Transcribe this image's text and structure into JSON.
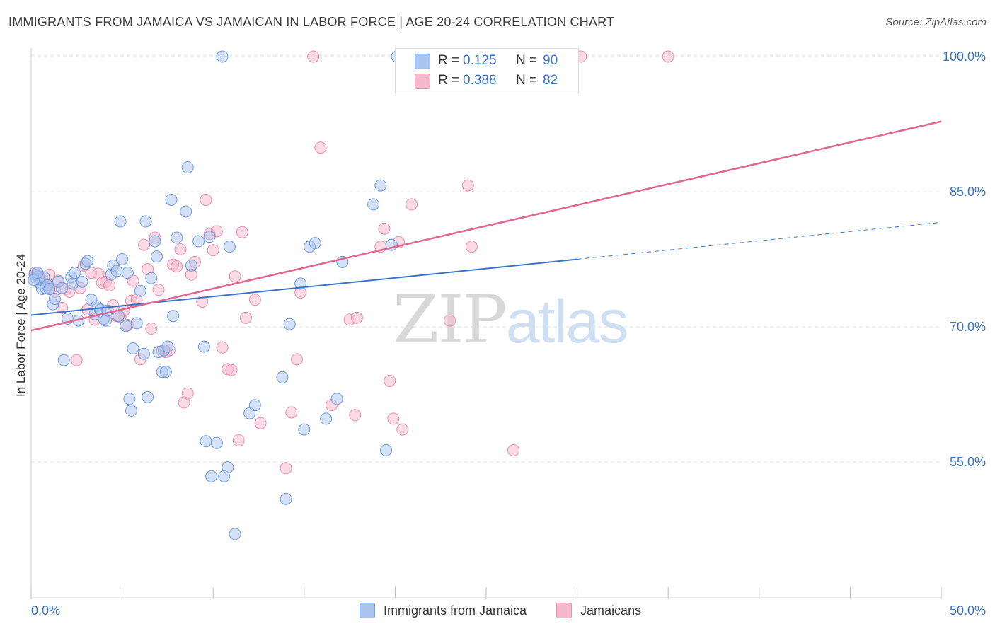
{
  "title": "IMMIGRANTS FROM JAMAICA VS JAMAICAN IN LABOR FORCE | AGE 20-24 CORRELATION CHART",
  "source": "Source: ZipAtlas.com",
  "watermark": {
    "part1": "ZIP",
    "part2": "atlas"
  },
  "legend_top": [
    {
      "r_label": "R =",
      "r_value": "0.125",
      "n_label": "N =",
      "n_value": "90"
    },
    {
      "r_label": "R =",
      "r_value": "0.388",
      "n_label": "N =",
      "n_value": "82"
    }
  ],
  "colors": {
    "blue_fill": "#a9c4ee",
    "blue_stroke": "#6f9be0",
    "blue_line": "#3a74c8",
    "pink_fill": "#f6b8cc",
    "pink_stroke": "#ea8fae",
    "pink_line": "#e06690",
    "tick_text": "#3a74c8",
    "grid": "#e0e0e0"
  },
  "chart_data": {
    "type": "scatter",
    "title": "IMMIGRANTS FROM JAMAICA VS JAMAICAN IN LABOR FORCE | AGE 20-24 CORRELATION CHART",
    "xlabel": "",
    "ylabel": "In Labor Force | Age 20-24",
    "xlim": [
      0,
      50
    ],
    "ylim": [
      40,
      101.5
    ],
    "x_tick_labels": [
      "0.0%",
      "50.0%"
    ],
    "y_ticks": [
      55,
      70,
      85,
      100
    ],
    "y_tick_labels": [
      "55.0%",
      "70.0%",
      "85.0%",
      "100.0%"
    ],
    "grid": "horizontal dashed",
    "legend": "top-center and bottom",
    "series": [
      {
        "name": "Immigrants from Jamaica",
        "r": 0.125,
        "n": 90,
        "trend": {
          "x0": 0,
          "y0": 71.3,
          "x1": 30,
          "y1": 77.5,
          "x_dashed_end": 50,
          "y_dashed_end": 81.6
        },
        "points": [
          [
            0.2,
            75.8
          ],
          [
            0.3,
            75.3
          ],
          [
            0.4,
            75.6
          ],
          [
            0.5,
            74.8
          ],
          [
            0.6,
            74.2
          ],
          [
            0.7,
            75.5
          ],
          [
            0.8,
            74.3
          ],
          [
            0.9,
            74.6
          ],
          [
            1.0,
            74.2
          ],
          [
            1.2,
            72.5
          ],
          [
            1.3,
            73.1
          ],
          [
            1.5,
            75.0
          ],
          [
            1.7,
            74.3
          ],
          [
            1.8,
            66.3
          ],
          [
            2.0,
            70.9
          ],
          [
            2.2,
            75.5
          ],
          [
            2.3,
            74.8
          ],
          [
            2.4,
            76.0
          ],
          [
            2.6,
            70.7
          ],
          [
            2.8,
            75.0
          ],
          [
            3.0,
            77.0
          ],
          [
            3.1,
            77.3
          ],
          [
            3.3,
            73.0
          ],
          [
            3.5,
            71.4
          ],
          [
            3.6,
            72.3
          ],
          [
            3.8,
            71.9
          ],
          [
            4.0,
            70.9
          ],
          [
            4.1,
            70.7
          ],
          [
            4.2,
            71.8
          ],
          [
            4.4,
            75.8
          ],
          [
            4.5,
            76.8
          ],
          [
            4.7,
            76.2
          ],
          [
            4.8,
            71.2
          ],
          [
            4.9,
            81.7
          ],
          [
            5.0,
            77.5
          ],
          [
            5.2,
            70.1
          ],
          [
            5.3,
            76.0
          ],
          [
            5.4,
            62.0
          ],
          [
            5.5,
            60.7
          ],
          [
            5.6,
            67.6
          ],
          [
            5.8,
            70.4
          ],
          [
            6.0,
            74.0
          ],
          [
            6.2,
            67.0
          ],
          [
            6.3,
            81.7
          ],
          [
            6.4,
            62.2
          ],
          [
            6.6,
            75.4
          ],
          [
            6.8,
            79.5
          ],
          [
            6.9,
            77.8
          ],
          [
            7.0,
            67.2
          ],
          [
            7.2,
            65.0
          ],
          [
            7.3,
            67.4
          ],
          [
            7.4,
            65.0
          ],
          [
            7.5,
            67.8
          ],
          [
            7.7,
            84.1
          ],
          [
            7.8,
            71.2
          ],
          [
            8.0,
            79.9
          ],
          [
            8.5,
            82.8
          ],
          [
            8.6,
            87.7
          ],
          [
            8.8,
            76.8
          ],
          [
            9.2,
            79.5
          ],
          [
            9.5,
            67.8
          ],
          [
            9.6,
            57.3
          ],
          [
            9.8,
            80.0
          ],
          [
            9.9,
            53.4
          ],
          [
            10.2,
            57.1
          ],
          [
            10.5,
            100.0
          ],
          [
            10.6,
            53.4
          ],
          [
            10.8,
            54.4
          ],
          [
            10.9,
            78.9
          ],
          [
            11.2,
            47.0
          ],
          [
            12.0,
            60.4
          ],
          [
            12.3,
            61.3
          ],
          [
            13.8,
            64.4
          ],
          [
            14.0,
            50.9
          ],
          [
            14.2,
            70.3
          ],
          [
            14.8,
            74.8
          ],
          [
            15.0,
            58.6
          ],
          [
            15.3,
            78.9
          ],
          [
            15.6,
            79.3
          ],
          [
            16.2,
            59.8
          ],
          [
            16.8,
            62.0
          ],
          [
            17.1,
            77.2
          ],
          [
            18.8,
            83.6
          ],
          [
            19.2,
            85.7
          ],
          [
            19.5,
            56.3
          ],
          [
            19.8,
            79.1
          ],
          [
            20.1,
            100.0
          ],
          [
            23.0,
            100.0
          ],
          [
            0.15,
            75.2
          ],
          [
            0.35,
            76.0
          ]
        ]
      },
      {
        "name": "Jamaicans",
        "r": 0.388,
        "n": 82,
        "trend": {
          "x0": 0,
          "y0": 69.6,
          "x1": 50,
          "y1": 92.8
        },
        "points": [
          [
            0.2,
            76.0
          ],
          [
            0.4,
            75.5
          ],
          [
            0.6,
            75.2
          ],
          [
            0.8,
            74.6
          ],
          [
            1.0,
            75.8
          ],
          [
            1.1,
            74.3
          ],
          [
            1.3,
            73.9
          ],
          [
            1.5,
            75.1
          ],
          [
            1.7,
            72.1
          ],
          [
            1.9,
            74.2
          ],
          [
            2.1,
            73.9
          ],
          [
            2.5,
            66.3
          ],
          [
            2.7,
            74.3
          ],
          [
            2.9,
            76.8
          ],
          [
            3.1,
            71.9
          ],
          [
            3.3,
            76.0
          ],
          [
            3.5,
            70.8
          ],
          [
            3.7,
            75.9
          ],
          [
            3.9,
            74.9
          ],
          [
            4.1,
            75.0
          ],
          [
            4.3,
            74.6
          ],
          [
            4.5,
            72.4
          ],
          [
            4.7,
            71.2
          ],
          [
            4.9,
            71.1
          ],
          [
            5.1,
            71.8
          ],
          [
            5.3,
            70.2
          ],
          [
            5.5,
            72.9
          ],
          [
            5.6,
            75.1
          ],
          [
            5.8,
            73.0
          ],
          [
            6.0,
            66.4
          ],
          [
            6.2,
            79.1
          ],
          [
            6.4,
            76.4
          ],
          [
            6.6,
            69.8
          ],
          [
            6.8,
            79.9
          ],
          [
            7.0,
            74.1
          ],
          [
            7.2,
            67.3
          ],
          [
            7.4,
            67.2
          ],
          [
            7.6,
            67.4
          ],
          [
            7.8,
            76.9
          ],
          [
            8.0,
            76.7
          ],
          [
            8.2,
            78.6
          ],
          [
            8.4,
            61.6
          ],
          [
            8.6,
            62.6
          ],
          [
            8.8,
            75.8
          ],
          [
            9.0,
            77.2
          ],
          [
            9.4,
            72.8
          ],
          [
            9.6,
            84.1
          ],
          [
            9.8,
            80.3
          ],
          [
            10.0,
            78.5
          ],
          [
            10.2,
            80.6
          ],
          [
            10.5,
            67.7
          ],
          [
            10.8,
            65.3
          ],
          [
            11.0,
            65.2
          ],
          [
            11.2,
            75.6
          ],
          [
            11.4,
            57.4
          ],
          [
            11.6,
            80.5
          ],
          [
            11.8,
            71.0
          ],
          [
            12.3,
            73.0
          ],
          [
            12.6,
            59.3
          ],
          [
            14.0,
            54.3
          ],
          [
            14.3,
            60.5
          ],
          [
            14.6,
            66.4
          ],
          [
            14.8,
            73.8
          ],
          [
            15.5,
            100.0
          ],
          [
            15.9,
            89.9
          ],
          [
            16.5,
            61.3
          ],
          [
            17.5,
            70.8
          ],
          [
            17.8,
            60.2
          ],
          [
            17.9,
            71.0
          ],
          [
            19.2,
            78.9
          ],
          [
            19.4,
            80.9
          ],
          [
            19.7,
            64.0
          ],
          [
            19.9,
            59.8
          ],
          [
            20.2,
            79.4
          ],
          [
            20.4,
            58.6
          ],
          [
            20.9,
            83.6
          ],
          [
            23.0,
            70.7
          ],
          [
            24.0,
            85.7
          ],
          [
            24.2,
            78.9
          ],
          [
            26.5,
            56.3
          ],
          [
            30.2,
            100.0
          ],
          [
            35.0,
            100.0
          ]
        ]
      }
    ]
  }
}
